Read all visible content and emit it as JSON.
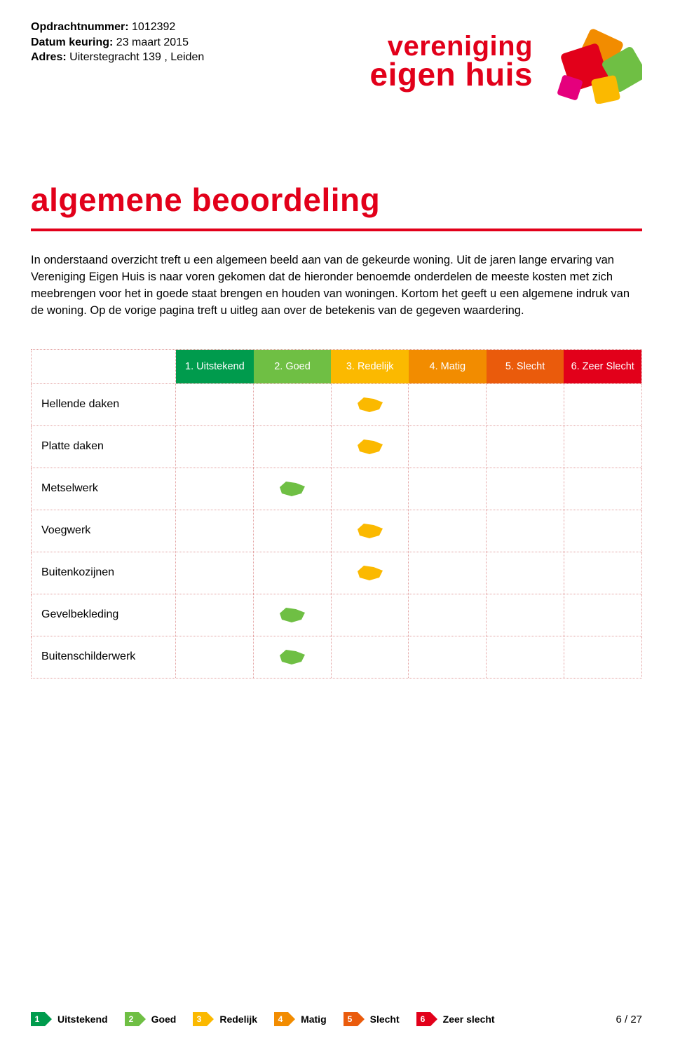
{
  "meta": {
    "opdracht_label": "Opdrachtnummer:",
    "opdracht_value": "1012392",
    "datum_label": "Datum keuring:",
    "datum_value": "23 maart 2015",
    "adres_label": "Adres:",
    "adres_value": "Uiterstegracht 139 , Leiden"
  },
  "brand": {
    "line1": "vereniging",
    "line2": "eigen huis",
    "color": "#e2001a",
    "logo_colors": {
      "orange": "#f28c00",
      "red": "#e2001a",
      "green": "#6fbf44",
      "magenta": "#e5007d",
      "yellow": "#fbb900"
    }
  },
  "title": "algemene beoordeling",
  "intro": "In onderstaand overzicht treft u een algemeen beeld aan van de gekeurde woning. Uit de jaren lange ervaring van Vereniging Eigen Huis is naar voren gekomen dat de hieronder benoemde onderdelen de meeste kosten met zich meebrengen voor het in goede staat brengen en houden van woningen. Kortom het geeft u een algemene indruk van de woning. Op de vorige pagina treft u uitleg aan over de betekenis van de gegeven waardering.",
  "ratings": {
    "headers": [
      {
        "label": "1. Uitstekend",
        "bg": "#009b4d"
      },
      {
        "label": "2. Goed",
        "bg": "#6fbf44"
      },
      {
        "label": "3. Redelijk",
        "bg": "#fbb900"
      },
      {
        "label": "4. Matig",
        "bg": "#f28c00"
      },
      {
        "label": "5. Slecht",
        "bg": "#ea5b0c"
      },
      {
        "label": "6. Zeer Slecht",
        "bg": "#e2001a"
      }
    ],
    "rows": [
      {
        "label": "Hellende daken",
        "score": 3
      },
      {
        "label": "Platte daken",
        "score": 3
      },
      {
        "label": "Metselwerk",
        "score": 2
      },
      {
        "label": "Voegwerk",
        "score": 3
      },
      {
        "label": "Buitenkozijnen",
        "score": 3
      },
      {
        "label": "Gevelbekleding",
        "score": 2
      },
      {
        "label": "Buitenschilderwerk",
        "score": 2
      }
    ],
    "marker_colors": {
      "2": "#6fbf44",
      "3": "#fbb900"
    },
    "grid_color": "#e2a0a0"
  },
  "legend": [
    {
      "num": "1",
      "label": "Uitstekend",
      "bg": "#009b4d"
    },
    {
      "num": "2",
      "label": "Goed",
      "bg": "#6fbf44"
    },
    {
      "num": "3",
      "label": "Redelijk",
      "bg": "#fbb900"
    },
    {
      "num": "4",
      "label": "Matig",
      "bg": "#f28c00"
    },
    {
      "num": "5",
      "label": "Slecht",
      "bg": "#ea5b0c"
    },
    {
      "num": "6",
      "label": "Zeer slecht",
      "bg": "#e2001a"
    }
  ],
  "page_number": "6 / 27"
}
